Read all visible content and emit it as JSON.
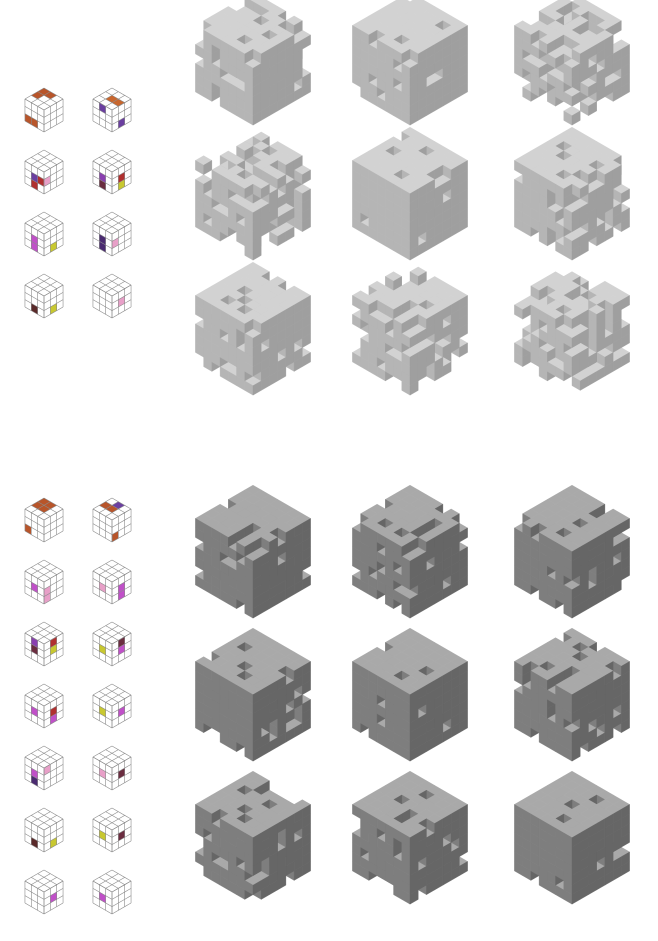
{
  "top_section": {
    "tile_icons": [
      {
        "faces": [
          {
            "face": "top",
            "cells": [
              [
                0,
                0,
                "#b8552a"
              ],
              [
                1,
                0,
                "#b8552a"
              ],
              [
                0,
                1,
                "#b8552a"
              ]
            ]
          },
          {
            "face": "left",
            "cells": [
              [
                0,
                2,
                "#b8552a"
              ],
              [
                1,
                2,
                "#b8552a"
              ]
            ]
          }
        ]
      },
      {
        "faces": [
          {
            "face": "top",
            "cells": [
              [
                1,
                1,
                "#c8662d"
              ],
              [
                2,
                1,
                "#c8662d"
              ]
            ]
          },
          {
            "face": "left",
            "cells": [
              [
                1,
                0,
                "#6b3fa0"
              ]
            ]
          },
          {
            "face": "right",
            "cells": [
              [
                1,
                2,
                "#6b3fa0"
              ]
            ]
          }
        ]
      },
      {
        "faces": [
          {
            "face": "left",
            "cells": [
              [
                1,
                1,
                "#6b3fa0"
              ],
              [
                2,
                1,
                "#b03030"
              ],
              [
                1,
                2,
                "#b03030"
              ]
            ]
          },
          {
            "face": "right",
            "cells": [
              [
                0,
                1,
                "#e8a0c8"
              ]
            ]
          }
        ]
      },
      {
        "faces": [
          {
            "face": "left",
            "cells": [
              [
                1,
                1,
                "#8a3fb0"
              ],
              [
                1,
                2,
                "#6b2d40"
              ]
            ]
          },
          {
            "face": "right",
            "cells": [
              [
                1,
                1,
                "#b03030"
              ],
              [
                1,
                2,
                "#c8c830"
              ]
            ]
          }
        ]
      },
      {
        "faces": [
          {
            "face": "left",
            "cells": [
              [
                1,
                1,
                "#c050c8"
              ],
              [
                1,
                2,
                "#c050c8"
              ]
            ]
          },
          {
            "face": "right",
            "cells": [
              [
                1,
                2,
                "#c8c830"
              ]
            ]
          }
        ]
      },
      {
        "faces": [
          {
            "face": "left",
            "cells": [
              [
                1,
                1,
                "#4a2a70"
              ],
              [
                1,
                2,
                "#4a2a70"
              ]
            ]
          },
          {
            "face": "right",
            "cells": [
              [
                0,
                1,
                "#e8a0c8"
              ]
            ]
          }
        ]
      },
      {
        "faces": [
          {
            "face": "left",
            "cells": [
              [
                1,
                2,
                "#5a2a2a"
              ]
            ]
          },
          {
            "face": "right",
            "cells": [
              [
                1,
                2,
                "#c8c830"
              ]
            ]
          }
        ]
      },
      {
        "faces": [
          {
            "face": "right",
            "cells": [
              [
                1,
                1,
                "#e8a0c8"
              ]
            ]
          }
        ]
      }
    ],
    "cube_renders": [
      {
        "seed": 3,
        "density": 0.72,
        "tone": "light"
      },
      {
        "seed": 7,
        "density": 0.9,
        "tone": "light"
      },
      {
        "seed": 11,
        "density": 0.55,
        "tone": "light"
      },
      {
        "seed": 13,
        "density": 0.5,
        "tone": "light"
      },
      {
        "seed": 17,
        "density": 0.92,
        "tone": "light"
      },
      {
        "seed": 19,
        "density": 0.75,
        "tone": "light"
      },
      {
        "seed": 23,
        "density": 0.8,
        "tone": "light"
      },
      {
        "seed": 29,
        "density": 0.68,
        "tone": "light"
      },
      {
        "seed": 31,
        "density": 0.58,
        "tone": "light"
      }
    ]
  },
  "bottom_section": {
    "tile_icons": [
      {
        "faces": [
          {
            "face": "top",
            "cells": [
              [
                0,
                0,
                "#b8552a"
              ],
              [
                1,
                0,
                "#b8552a"
              ],
              [
                0,
                1,
                "#b8552a"
              ],
              [
                1,
                1,
                "#b8552a"
              ]
            ]
          },
          {
            "face": "left",
            "cells": [
              [
                0,
                2,
                "#b8552a"
              ]
            ]
          }
        ]
      },
      {
        "faces": [
          {
            "face": "top",
            "cells": [
              [
                1,
                0,
                "#6b3fa0"
              ],
              [
                0,
                1,
                "#b8552a"
              ],
              [
                1,
                1,
                "#b8552a"
              ]
            ]
          },
          {
            "face": "right",
            "cells": [
              [
                0,
                2,
                "#b8552a"
              ]
            ]
          }
        ]
      },
      {
        "faces": [
          {
            "face": "left",
            "cells": [
              [
                1,
                1,
                "#c050c8"
              ]
            ]
          },
          {
            "face": "right",
            "cells": [
              [
                0,
                1,
                "#e8a0c8"
              ],
              [
                0,
                2,
                "#e8a0c8"
              ]
            ]
          }
        ]
      },
      {
        "faces": [
          {
            "face": "left",
            "cells": [
              [
                1,
                1,
                "#e8a0c8"
              ]
            ]
          },
          {
            "face": "right",
            "cells": [
              [
                1,
                1,
                "#c050c8"
              ],
              [
                1,
                2,
                "#c050c8"
              ]
            ]
          }
        ]
      },
      {
        "faces": [
          {
            "face": "left",
            "cells": [
              [
                1,
                0,
                "#8a3fb0"
              ],
              [
                1,
                1,
                "#6b2d40"
              ]
            ]
          },
          {
            "face": "right",
            "cells": [
              [
                1,
                0,
                "#b03030"
              ],
              [
                1,
                1,
                "#c8c830"
              ]
            ]
          }
        ]
      },
      {
        "faces": [
          {
            "face": "left",
            "cells": [
              [
                1,
                1,
                "#c8c830"
              ]
            ]
          },
          {
            "face": "right",
            "cells": [
              [
                1,
                0,
                "#6b2d40"
              ],
              [
                1,
                1,
                "#c050c8"
              ]
            ]
          }
        ]
      },
      {
        "faces": [
          {
            "face": "left",
            "cells": [
              [
                1,
                1,
                "#c050c8"
              ]
            ]
          },
          {
            "face": "right",
            "cells": [
              [
                1,
                1,
                "#b03030"
              ],
              [
                1,
                2,
                "#c050c8"
              ]
            ]
          }
        ]
      },
      {
        "faces": [
          {
            "face": "left",
            "cells": [
              [
                1,
                1,
                "#c8c830"
              ]
            ]
          },
          {
            "face": "right",
            "cells": [
              [
                1,
                1,
                "#c050c8"
              ]
            ]
          }
        ]
      },
      {
        "faces": [
          {
            "face": "left",
            "cells": [
              [
                1,
                1,
                "#c050c8"
              ],
              [
                1,
                2,
                "#4a2a70"
              ]
            ]
          },
          {
            "face": "right",
            "cells": [
              [
                0,
                0,
                "#e8a0c8"
              ]
            ]
          }
        ]
      },
      {
        "faces": [
          {
            "face": "left",
            "cells": [
              [
                1,
                1,
                "#e8a0c8"
              ]
            ]
          },
          {
            "face": "right",
            "cells": [
              [
                1,
                1,
                "#6b2d40"
              ]
            ]
          }
        ]
      },
      {
        "faces": [
          {
            "face": "left",
            "cells": [
              [
                1,
                2,
                "#5a2a2a"
              ]
            ]
          },
          {
            "face": "right",
            "cells": [
              [
                1,
                2,
                "#c8c830"
              ]
            ]
          }
        ]
      },
      {
        "faces": [
          {
            "face": "left",
            "cells": [
              [
                1,
                1,
                "#c8c830"
              ]
            ]
          },
          {
            "face": "right",
            "cells": [
              [
                1,
                1,
                "#6b2d40"
              ]
            ]
          }
        ]
      },
      {
        "faces": [
          {
            "face": "right",
            "cells": [
              [
                1,
                1,
                "#c050c8"
              ]
            ]
          }
        ]
      },
      {
        "faces": [
          {
            "face": "left",
            "cells": [
              [
                1,
                1,
                "#c050c8"
              ]
            ]
          }
        ]
      }
    ],
    "cube_renders": [
      {
        "seed": 37,
        "density": 0.85,
        "tone": "dark"
      },
      {
        "seed": 41,
        "density": 0.82,
        "tone": "dark"
      },
      {
        "seed": 43,
        "density": 0.9,
        "tone": "dark"
      },
      {
        "seed": 47,
        "density": 0.88,
        "tone": "dark"
      },
      {
        "seed": 53,
        "density": 0.9,
        "tone": "dark"
      },
      {
        "seed": 59,
        "density": 0.85,
        "tone": "dark"
      },
      {
        "seed": 61,
        "density": 0.86,
        "tone": "dark"
      },
      {
        "seed": 67,
        "density": 0.88,
        "tone": "dark"
      },
      {
        "seed": 71,
        "density": 0.9,
        "tone": "dark"
      }
    ]
  },
  "palette": {
    "light_top": "#d2d2d2",
    "light_left": "#b5b5b5",
    "light_right": "#9f9f9f",
    "dark_top": "#a9a9a9",
    "dark_left": "#7e7e7e",
    "dark_right": "#666666",
    "grid_line": "#8a8a8a"
  }
}
